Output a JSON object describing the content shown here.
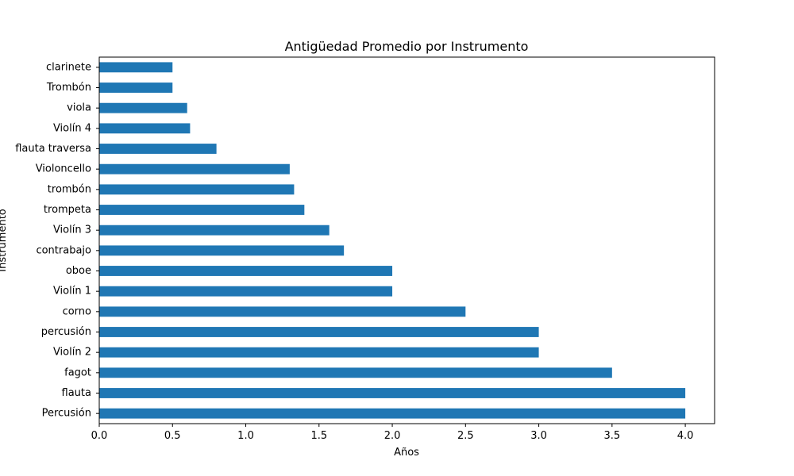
{
  "chart_data": {
    "type": "bar",
    "orientation": "horizontal",
    "title": "Antigüedad Promedio por Instrumento",
    "xlabel": "Años",
    "ylabel": "Instrumento",
    "xlim": [
      0,
      4.2
    ],
    "x_ticks": [
      0,
      0.5,
      1,
      1.5,
      2,
      2.5,
      3,
      3.5,
      4
    ],
    "x_tick_labels": [
      "0.0",
      "0.5",
      "1.0",
      "1.5",
      "2.0",
      "2.5",
      "3.0",
      "3.5",
      "4.0"
    ],
    "grid": false,
    "legend": "none",
    "bar_color": "#1f77b4",
    "categories": [
      "Percusión",
      "flauta",
      "fagot",
      "Violín 2",
      "percusión",
      "corno",
      "Violín 1",
      "oboe",
      "contrabajo",
      "Violín 3",
      "trompeta",
      "trombón",
      "Violoncello",
      "flauta traversa",
      "Violín 4",
      "viola",
      "Trombón",
      "clarinete"
    ],
    "values": [
      4.0,
      4.0,
      3.5,
      3.0,
      3.0,
      2.5,
      2.0,
      2.0,
      1.67,
      1.57,
      1.4,
      1.33,
      1.3,
      0.8,
      0.62,
      0.6,
      0.5,
      0.5
    ]
  }
}
